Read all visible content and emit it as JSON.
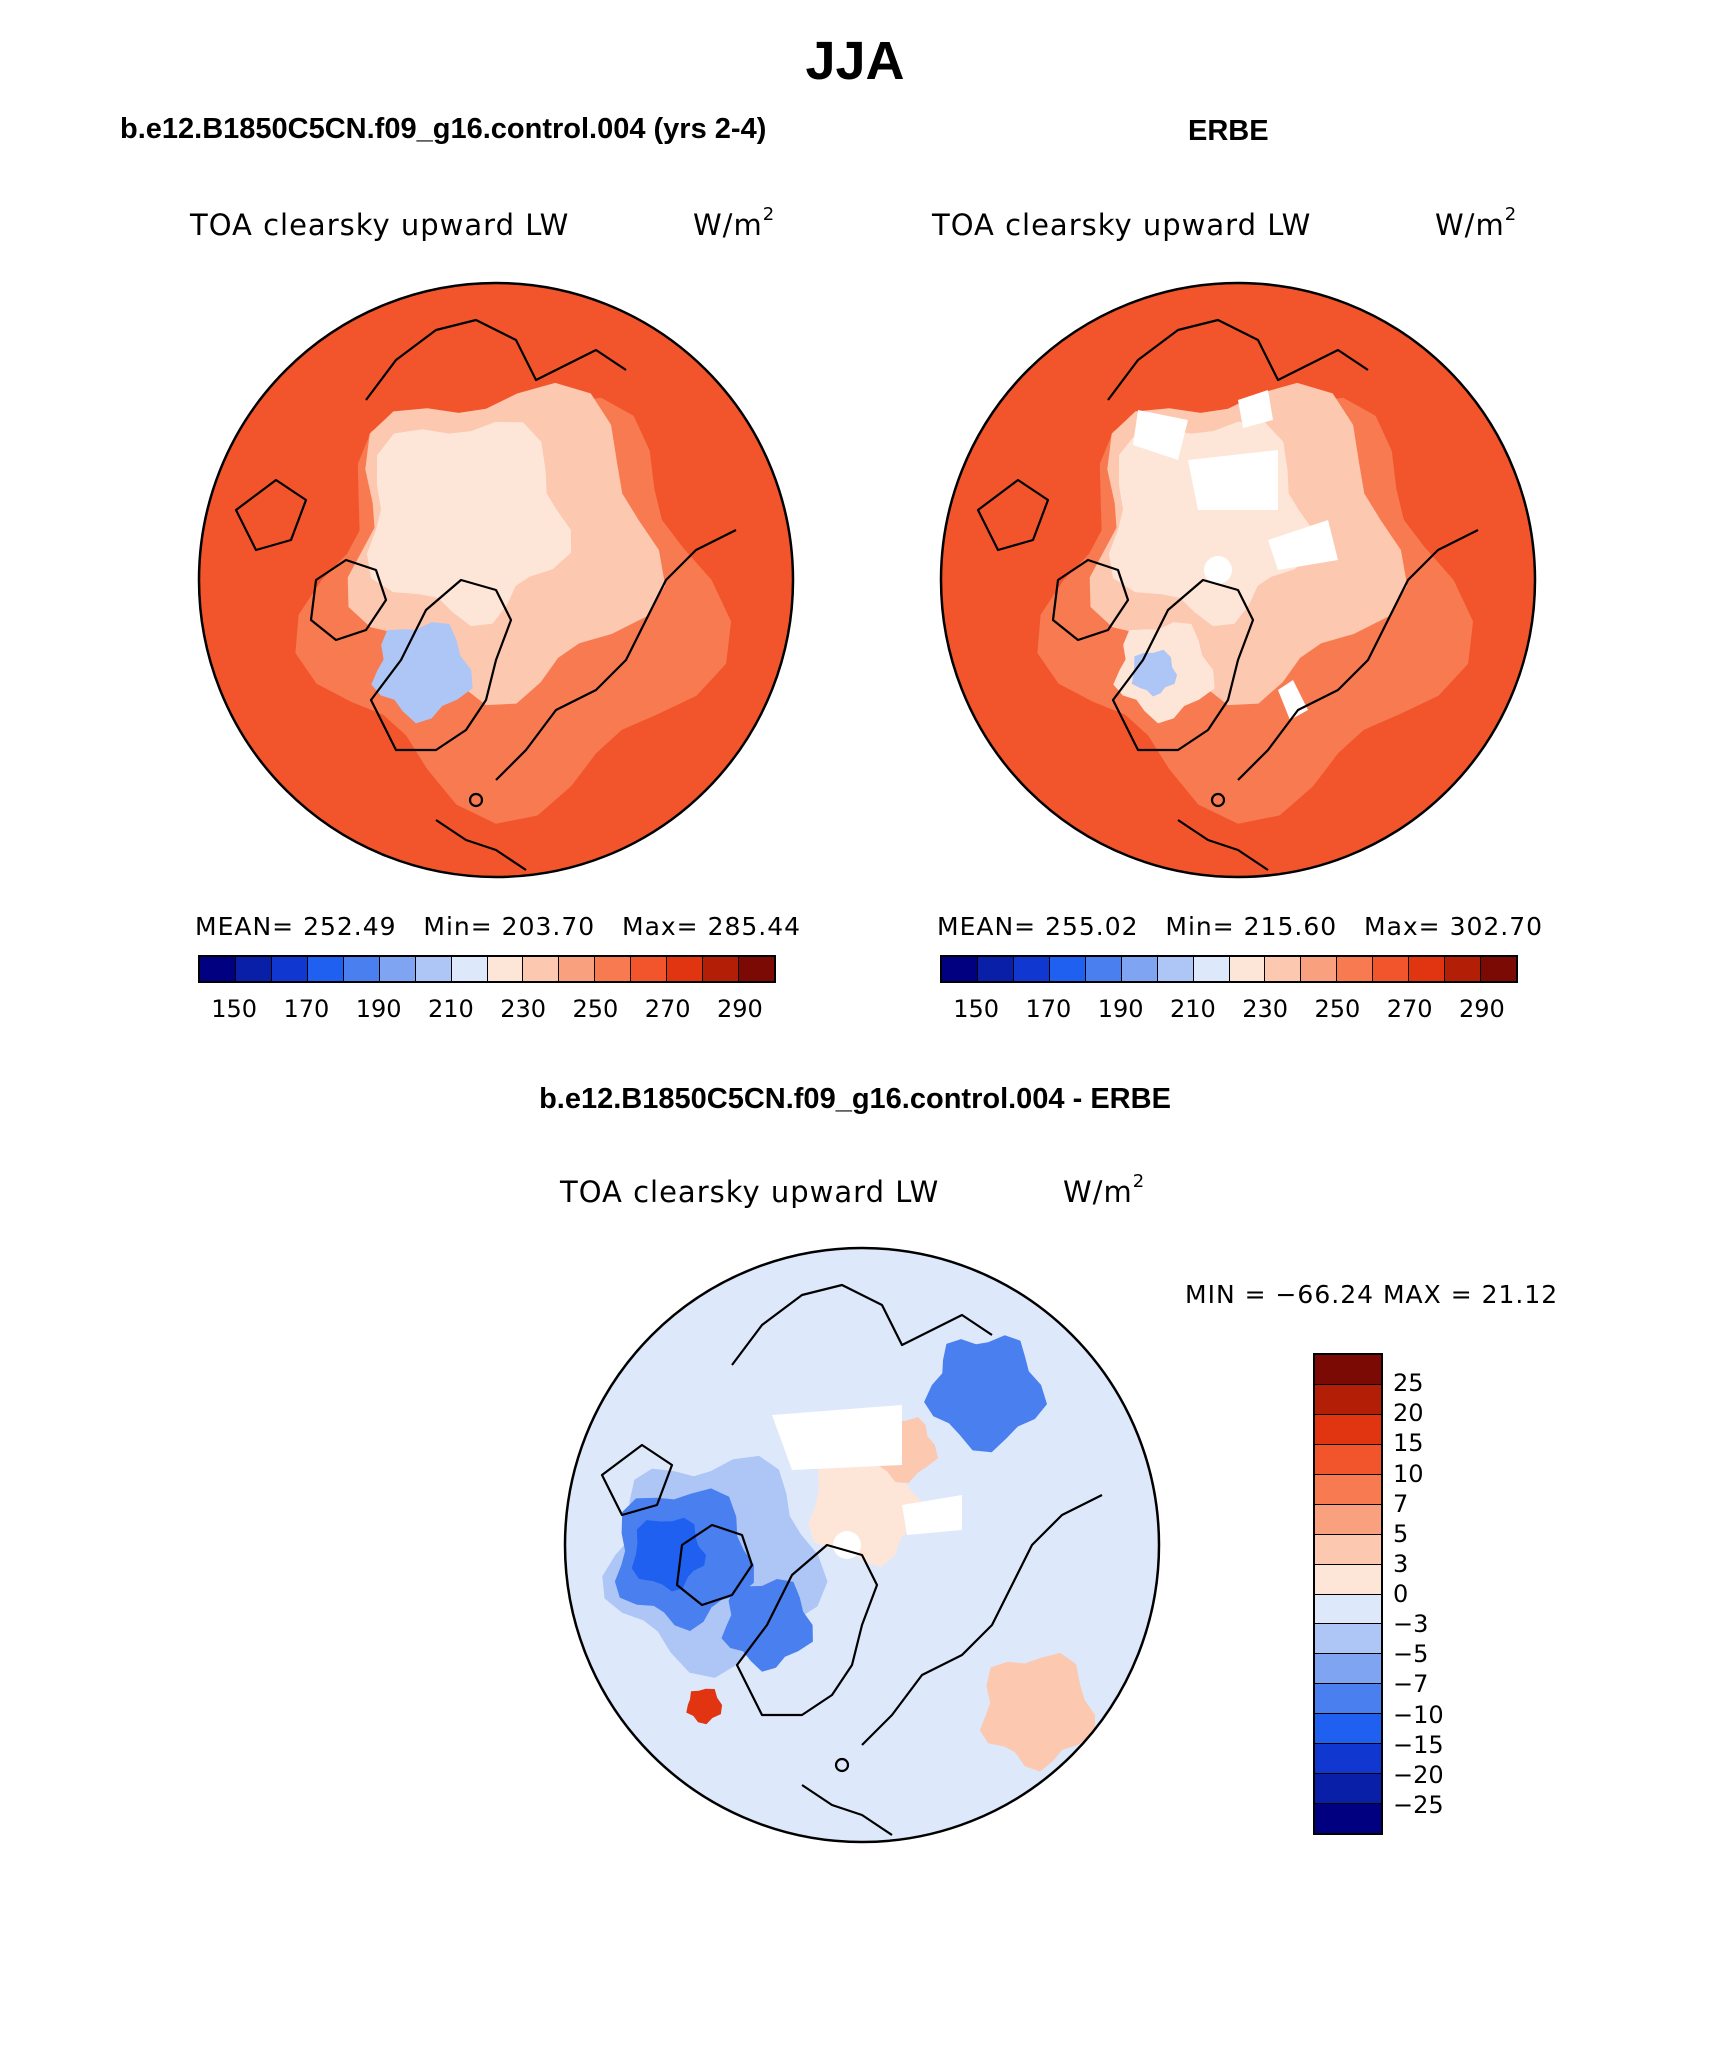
{
  "title": "JJA",
  "panels": {
    "model": {
      "case_title": "b.e12.B1850C5CN.f09_g16.control.004 (yrs 2-4)",
      "variable": "TOA clearsky upward LW",
      "units_base": "W/m",
      "units_exp": "2",
      "mean_label": "MEAN=",
      "mean": "252.49",
      "min_label": "Min=",
      "min": "203.70",
      "max_label": "Max=",
      "max": "285.44"
    },
    "obs": {
      "case_title": "ERBE",
      "variable": "TOA clearsky upward LW",
      "units_base": "W/m",
      "units_exp": "2",
      "mean_label": "MEAN=",
      "mean": "255.02",
      "min_label": "Min=",
      "min": "215.60",
      "max_label": "Max=",
      "max": "302.70"
    },
    "diff": {
      "case_title": "b.e12.B1850C5CN.f09_g16.control.004 - ERBE",
      "variable": "TOA clearsky upward LW",
      "units_base": "W/m",
      "units_exp": "2",
      "minmax": "MIN = −66.24 MAX =  21.12"
    }
  },
  "abs_colorbar": {
    "colors": [
      "#000080",
      "#0a1fa8",
      "#1038d0",
      "#2060f0",
      "#4a7ff0",
      "#7fa4f2",
      "#adc6f5",
      "#dde9fb",
      "#fde6d8",
      "#fcc8b0",
      "#f9a17e",
      "#f77a50",
      "#f2552b",
      "#e03510",
      "#b31e06",
      "#7a0a03"
    ],
    "tick_labels": [
      "150",
      "170",
      "190",
      "210",
      "230",
      "250",
      "270",
      "290"
    ]
  },
  "diff_colorbar": {
    "colors": [
      "#7a0a03",
      "#b31e06",
      "#e03510",
      "#f2552b",
      "#f77a50",
      "#f9a17e",
      "#fcc8b0",
      "#fde6d8",
      "#dde9fb",
      "#adc6f5",
      "#7fa4f2",
      "#4a7ff0",
      "#2060f0",
      "#1038d0",
      "#0a1fa8",
      "#000080"
    ],
    "tick_labels": [
      "25",
      "20",
      "15",
      "10",
      "7",
      "5",
      "3",
      "0",
      "−3",
      "−5",
      "−7",
      "−10",
      "−15",
      "−20",
      "−25"
    ]
  },
  "map_colors": {
    "warm_outer": "#f2552b",
    "warm_mid": "#f77a50",
    "light": "#fcc8b0",
    "pale": "#fde6d8",
    "blue_pale": "#dde9fb",
    "blue_light": "#adc6f5",
    "blue_mid": "#4a7ff0",
    "blue_deep": "#2060f0",
    "red_deep": "#e03510"
  }
}
